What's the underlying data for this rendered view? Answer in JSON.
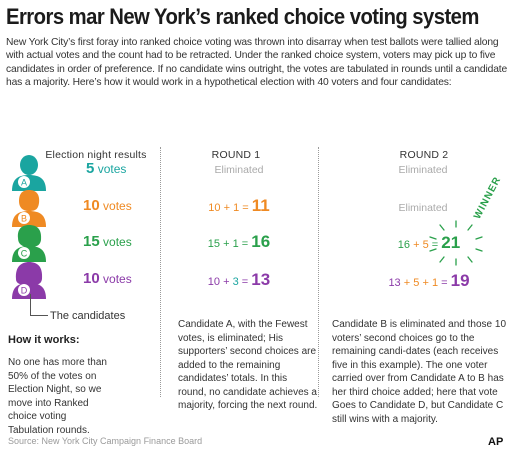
{
  "title": "Errors mar New York’s ranked choice voting system",
  "intro": "New York City’s first foray into ranked choice voting was thrown into disarray when test ballots were tallied along with actual votes and the count had to be retracted. Under the ranked choice system, voters may pick up to five candidates in order of preference. If no candidate wins outright, the votes are tabulated in rounds until a candidate has a majority. Here’s how it would work in a hypothetical election with 40 voters and four candidates:",
  "columns": {
    "election_night": "Election night results",
    "round1": "ROUND 1",
    "round2": "ROUND 2"
  },
  "candidates": [
    {
      "letter": "A",
      "votes": "5",
      "unit": "votes",
      "color": "#1aa5a0"
    },
    {
      "letter": "B",
      "votes": "10",
      "unit": "votes",
      "color": "#ef8a23"
    },
    {
      "letter": "C",
      "votes": "15",
      "unit": "votes",
      "color": "#2aa04b"
    },
    {
      "letter": "D",
      "votes": "10",
      "unit": "votes",
      "color": "#8b3aa8"
    }
  ],
  "round1": {
    "a": "Eliminated",
    "b": {
      "base": "10",
      "op1": "+",
      "add": "1",
      "eq": "=",
      "total": "11"
    },
    "c": {
      "base": "15",
      "op1": "+",
      "add": "1",
      "eq": "=",
      "total": "16"
    },
    "d": {
      "base": "10",
      "op1": "+",
      "add": "3",
      "eq": "=",
      "total": "13"
    }
  },
  "round2": {
    "a": "Eliminated",
    "b": "Eliminated",
    "c": {
      "base": "16",
      "op1": "+",
      "add": "5",
      "eq": "=",
      "total": "21"
    },
    "d": {
      "base": "13",
      "op1": "+",
      "add1": "5",
      "op2": "+",
      "add2": "1",
      "eq": "=",
      "total": "19"
    },
    "winner": "WINNER"
  },
  "candidates_label": "The candidates",
  "how_it_works": {
    "title": "How it works:",
    "text": "No one has more than 50% of the votes on Election Night, so we move into Ranked choice voting Tabulation rounds."
  },
  "round1_text": "Candidate A, with the Fewest votes, is eliminated; His supporters’ second choices are added to the remaining candidates’ totals. In this round, no candidate achieves a majority, forcing the next round.",
  "round2_text": "Candidate B is eliminated and those 10 voters’ second choices go to the remaining candi-dates (each receives five in this example). The one voter carried over from Candidate A to B has her third choice added; here that vote Goes to Candidate D, but Candidate C still wins with a majority.",
  "source": "Source: New York City Campaign Finance Board",
  "credit": "AP"
}
